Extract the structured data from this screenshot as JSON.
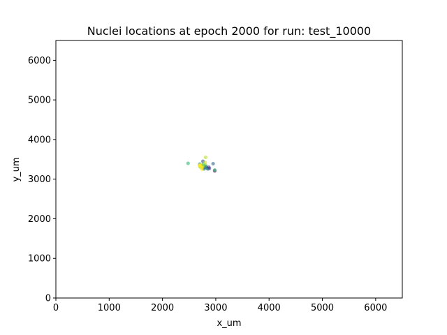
{
  "chart_data": {
    "type": "scatter",
    "title": "Nuclei locations at epoch 2000 for run: test_10000",
    "xlabel": "x_um",
    "ylabel": "y_um",
    "xlim": [
      0,
      6500
    ],
    "ylim": [
      0,
      6500
    ],
    "xticks": [
      0,
      1000,
      2000,
      3000,
      4000,
      5000,
      6000
    ],
    "yticks": [
      0,
      1000,
      2000,
      3000,
      4000,
      5000,
      6000
    ],
    "grid": false,
    "legend": "none",
    "marker_opacity": 0.6,
    "colormap": "viridis",
    "points": [
      {
        "x": 2480,
        "y": 3400,
        "color": "#35b779"
      },
      {
        "x": 2810,
        "y": 3550,
        "color": "#b5de2b"
      },
      {
        "x": 2760,
        "y": 3450,
        "color": "#3b528b"
      },
      {
        "x": 2950,
        "y": 3390,
        "color": "#31688e"
      },
      {
        "x": 2980,
        "y": 3210,
        "color": "#440154"
      },
      {
        "x": 2980,
        "y": 3230,
        "color": "#35b779"
      },
      {
        "x": 2700,
        "y": 3380,
        "color": "#21918c"
      },
      {
        "x": 2880,
        "y": 3270,
        "color": "#3b528b"
      },
      {
        "x": 2850,
        "y": 3260,
        "color": "#31688e"
      },
      {
        "x": 2830,
        "y": 3280,
        "color": "#21918c"
      },
      {
        "x": 2800,
        "y": 3300,
        "color": "#1f9e89"
      },
      {
        "x": 2780,
        "y": 3260,
        "color": "#26828e"
      },
      {
        "x": 2760,
        "y": 3280,
        "color": "#3b528b"
      },
      {
        "x": 2720,
        "y": 3300,
        "color": "#6ece58"
      },
      {
        "x": 2700,
        "y": 3320,
        "color": "#b5de2b"
      },
      {
        "x": 2690,
        "y": 3350,
        "color": "#fde725"
      },
      {
        "x": 2710,
        "y": 3340,
        "color": "#fde725"
      },
      {
        "x": 2730,
        "y": 3330,
        "color": "#fde725"
      },
      {
        "x": 2750,
        "y": 3320,
        "color": "#fde725"
      },
      {
        "x": 2720,
        "y": 3360,
        "color": "#fde725"
      },
      {
        "x": 2740,
        "y": 3290,
        "color": "#fde725"
      },
      {
        "x": 2760,
        "y": 3340,
        "color": "#d8e219"
      },
      {
        "x": 2790,
        "y": 3330,
        "color": "#a0da39"
      },
      {
        "x": 2810,
        "y": 3350,
        "color": "#6ece58"
      },
      {
        "x": 2770,
        "y": 3380,
        "color": "#4ac16d"
      },
      {
        "x": 2740,
        "y": 3250,
        "color": "#fde725"
      },
      {
        "x": 2820,
        "y": 3310,
        "color": "#2c728e"
      },
      {
        "x": 2870,
        "y": 3300,
        "color": "#472d7b"
      },
      {
        "x": 2800,
        "y": 3420,
        "color": "#cde11d"
      }
    ]
  }
}
